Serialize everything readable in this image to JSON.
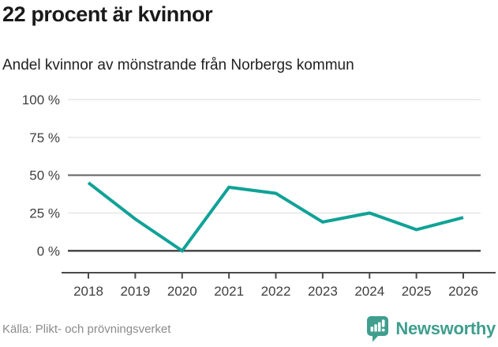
{
  "header": {
    "title": "22 procent är kvinnor",
    "subtitle": "Andel kvinnor av mönstrande från Norbergs kommun"
  },
  "chart_data": {
    "type": "line",
    "title": "22 procent är kvinnor",
    "subtitle": "Andel kvinnor av mönstrande från Norbergs kommun",
    "categories": [
      "2018",
      "2019",
      "2020",
      "2021",
      "2022",
      "2023",
      "2024",
      "2025",
      "2026"
    ],
    "series": [
      {
        "name": "Andel kvinnor av mönstrande",
        "values": [
          45,
          21,
          0,
          42,
          38,
          19,
          25,
          14,
          22
        ]
      }
    ],
    "unit": "%",
    "ylim": [
      0,
      100
    ],
    "yticks": [
      0,
      25,
      50,
      75,
      100
    ],
    "ytick_labels": [
      "0 %",
      "25 %",
      "50 %",
      "75 %",
      "100 %"
    ],
    "grid": true,
    "legend": "none",
    "emphasized_gridlines": [
      50,
      0
    ],
    "line_color": "#10a296"
  },
  "footer": {
    "source": "Källa: Plikt- och prövningsverket",
    "brand": "Newsworthy"
  },
  "colors": {
    "accent_teal": "#10a296",
    "brand_teal": "#3f9e8e",
    "grid_light": "#e4e4e4",
    "grid_mid": "#6f6f6f",
    "grid_zero": "#3f3f3f",
    "axis": "#4a4a4a",
    "text_title": "#1a1a1a",
    "text_axis": "#3f3f3f",
    "text_source": "#8b8b8b"
  }
}
